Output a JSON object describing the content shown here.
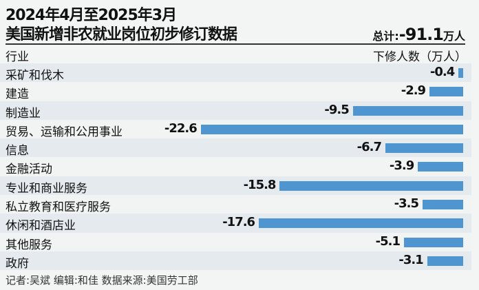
{
  "chart_data": {
    "type": "bar",
    "title": "2024年4月至2025年3月",
    "subtitle": "美国新增非农就业岗位初步修订数据",
    "total_label": "总计:",
    "total_value": "-91.1",
    "total_unit": "万人",
    "xlabel": "下修人数（万人）",
    "ylabel": "行业",
    "categories": [
      "采矿和伐木",
      "建造",
      "制造业",
      "贸易、运输和公用事业",
      "信息",
      "金融活动",
      "专业和商业服务",
      "私立教育和医疗服务",
      "休闲和酒店业",
      "其他服务",
      "政府"
    ],
    "values": [
      -0.4,
      -2.9,
      -9.5,
      -22.6,
      -6.7,
      -3.9,
      -15.8,
      -3.5,
      -17.6,
      -5.1,
      -3.1
    ],
    "bar_color": "#4f95cf",
    "grid": false
  },
  "footer": "记者:吴斌  编辑:和佳  数据来源:美国劳工部"
}
